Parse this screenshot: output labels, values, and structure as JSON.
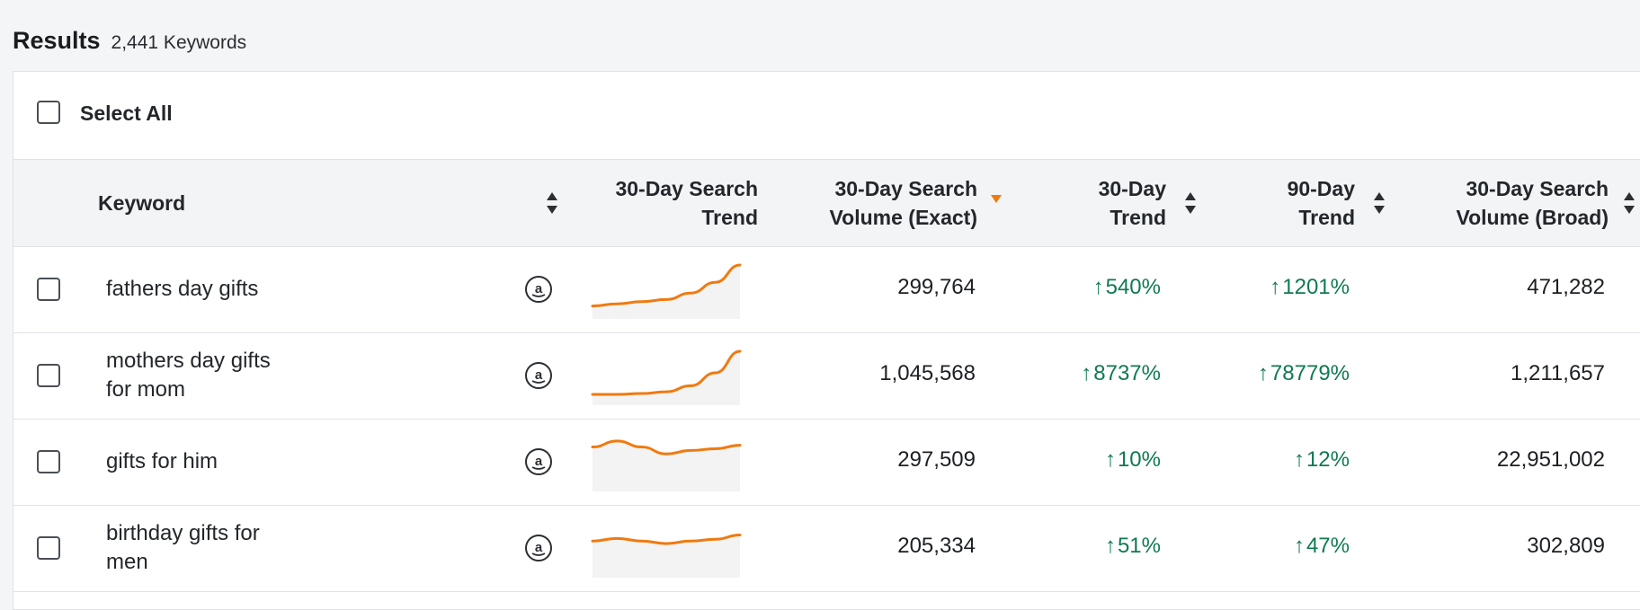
{
  "results": {
    "title": "Results",
    "count": "2,441 Keywords"
  },
  "select_all_label": "Select All",
  "columns": {
    "keyword": "Keyword",
    "search_trend_l1": "30-Day Search",
    "search_trend_l2": "Trend",
    "volume_exact_l1": "30-Day Search",
    "volume_exact_l2": "Volume (Exact)",
    "trend30_l1": "30-Day",
    "trend30_l2": "Trend",
    "trend90_l1": "90-Day",
    "trend90_l2": "Trend",
    "volume_broad_l1": "30-Day Search",
    "volume_broad_l2": "Volume (Broad)"
  },
  "colors": {
    "trend_up": "#0f7a4f",
    "sparkline": "#f07a10",
    "active_sort": "#f07a10"
  },
  "rows": [
    {
      "kw1": "fathers day gifts",
      "kw2": "",
      "volume_exact": "299,764",
      "trend30": "540%",
      "trend90": "1201%",
      "volume_broad": "471,282",
      "spark": [
        0.05,
        0.1,
        0.15,
        0.2,
        0.35,
        0.6,
        1.0
      ]
    },
    {
      "kw1": "mothers day gifts",
      "kw2": "for mom",
      "volume_exact": "1,045,568",
      "trend30": "8737%",
      "trend90": "78779%",
      "volume_broad": "1,211,657",
      "spark": [
        0.0,
        0.0,
        0.02,
        0.06,
        0.2,
        0.5,
        1.0
      ]
    },
    {
      "kw1": "gifts for him",
      "kw2": "",
      "volume_exact": "297,509",
      "trend30": "10%",
      "trend90": "12%",
      "volume_broad": "22,951,002",
      "spark": [
        0.78,
        0.92,
        0.78,
        0.62,
        0.7,
        0.74,
        0.82
      ]
    },
    {
      "kw1": "birthday gifts for",
      "kw2": "men",
      "volume_exact": "205,334",
      "trend30": "51%",
      "trend90": "47%",
      "volume_broad": "302,809",
      "spark": [
        0.6,
        0.66,
        0.6,
        0.54,
        0.6,
        0.64,
        0.74
      ]
    }
  ],
  "icons": {
    "sort": "sort-updown-icon",
    "amazon": "amazon-logo-icon",
    "up_arrow": "arrow-up-icon",
    "sort_active": "sort-desc-icon"
  }
}
